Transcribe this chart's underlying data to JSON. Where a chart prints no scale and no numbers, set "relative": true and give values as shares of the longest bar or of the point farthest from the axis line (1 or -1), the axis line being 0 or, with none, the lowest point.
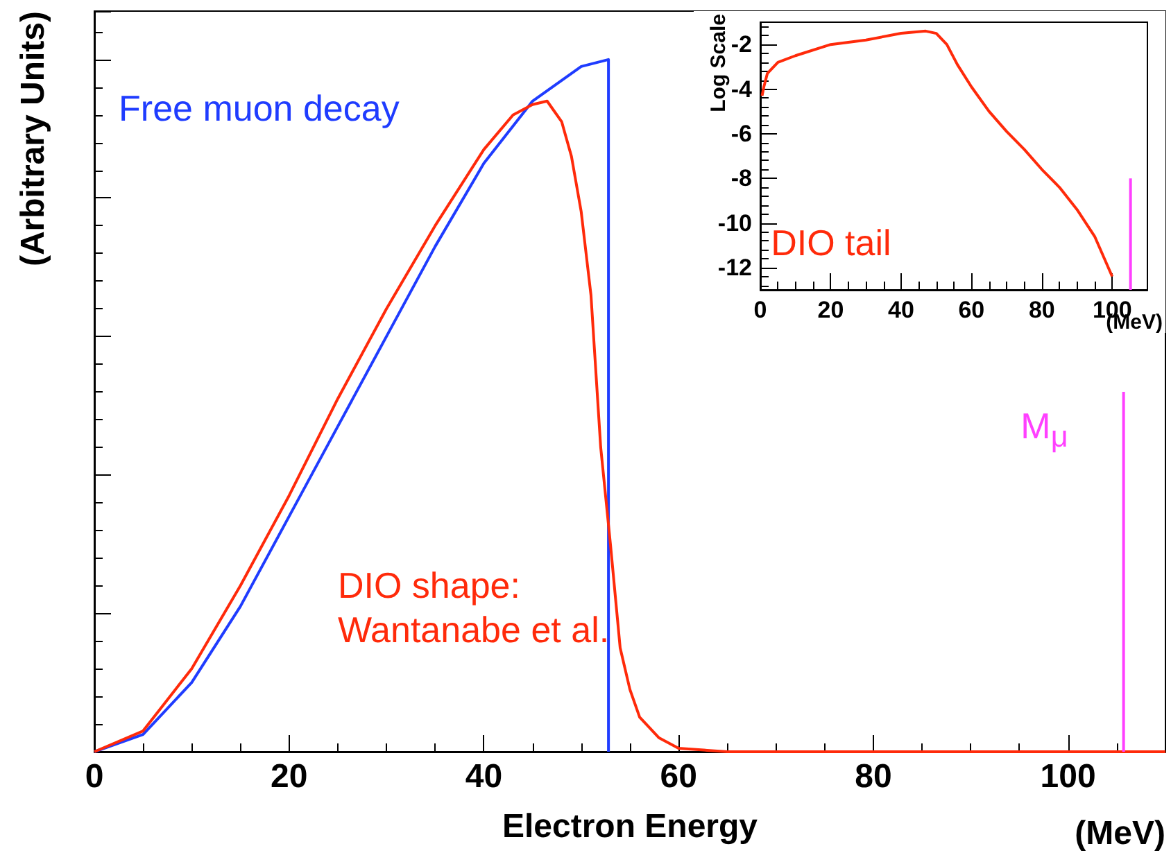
{
  "chart_data": [
    {
      "type": "line",
      "xlabel": "Electron Energy",
      "ylabel": "(Arbitrary Units)",
      "relative": true,
      "tick_labels": "x",
      "xlim": [
        0,
        110
      ],
      "xticks": [
        0,
        20,
        40,
        60,
        80,
        100
      ],
      "marker": "none",
      "annotations": [
        "(MeV)"
      ],
      "series": [
        {
          "name": "Free muon decay",
          "color": "#1f3cff",
          "x": [
            0,
            5,
            10,
            15,
            20,
            25,
            30,
            35,
            40,
            45,
            50,
            52.8,
            52.8
          ],
          "values": [
            0,
            0.025,
            0.1,
            0.21,
            0.34,
            0.47,
            0.6,
            0.73,
            0.85,
            0.94,
            0.99,
            1,
            0
          ]
        },
        {
          "name": "DIO shape:\nWantanabe et al.",
          "color": "#ff2a0a",
          "x": [
            0,
            5,
            10,
            15,
            20,
            25,
            30,
            35,
            40,
            43,
            45,
            46.5,
            47,
            48,
            49,
            50,
            51,
            52,
            53,
            54,
            55,
            56,
            58,
            60,
            65,
            110
          ],
          "values": [
            0,
            0.03,
            0.12,
            0.24,
            0.37,
            0.51,
            0.64,
            0.76,
            0.87,
            0.92,
            0.935,
            0.94,
            0.93,
            0.91,
            0.86,
            0.78,
            0.66,
            0.44,
            0.3,
            0.15,
            0.09,
            0.05,
            0.02,
            0.005,
            0,
            0
          ]
        },
        {
          "name": "M$_{μ}$",
          "color": "#ff40ff",
          "x": [
            105.7,
            105.7
          ],
          "values": [
            0,
            0.52
          ]
        }
      ]
    },
    {
      "type": "line",
      "xlabel": "(MeV)",
      "ylabel": "Log Scale",
      "xlim": [
        0,
        110
      ],
      "xticks": [
        0,
        20,
        40,
        60,
        80,
        100
      ],
      "ylim": [
        -13,
        -1
      ],
      "yticks": [
        -2,
        -4,
        -6,
        -8,
        -10,
        -12
      ],
      "marker": "none",
      "series": [
        {
          "name": "DIO tail",
          "color": "#ff2a0a",
          "x": [
            0.5,
            1,
            2,
            5,
            10,
            20,
            30,
            40,
            47,
            50,
            53,
            56,
            60,
            65,
            70,
            75,
            80,
            85,
            90,
            95,
            100
          ],
          "values": [
            -4.3,
            -3.9,
            -3.3,
            -2.8,
            -2.5,
            -2.0,
            -1.8,
            -1.5,
            -1.4,
            -1.5,
            -2.0,
            -2.9,
            -3.9,
            -5.0,
            -5.9,
            -6.7,
            -7.6,
            -8.4,
            -9.4,
            -10.6,
            -12.4
          ]
        },
        {
          "color": "#ff40ff",
          "x": [
            105.2,
            105.2
          ],
          "values": [
            -13,
            -8
          ]
        }
      ]
    }
  ]
}
